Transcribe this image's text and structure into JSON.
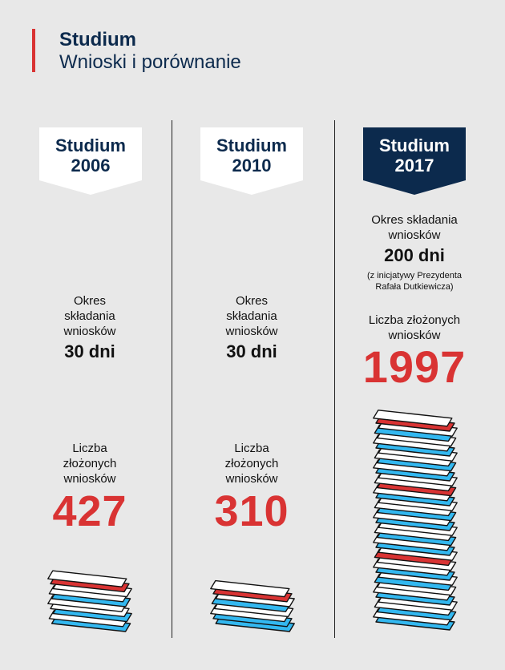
{
  "header": {
    "title": "Studium",
    "subtitle": "Wnioski i porównanie"
  },
  "colors": {
    "navy": "#0c2a4d",
    "red": "#d93333",
    "blue": "#33b8f0",
    "background": "#e8e8e8"
  },
  "columns": [
    {
      "badge_line1": "Studium",
      "badge_line2": "2006",
      "badge_style": "light",
      "period_label": "Okres składania wniosków",
      "period_value": "30 dni",
      "count_label": "Liczba złożonych wniosków",
      "count_value": "427",
      "stack_sheets": [
        "white",
        "red",
        "white",
        "white",
        "blue",
        "white",
        "white",
        "blue",
        "white",
        "blue"
      ]
    },
    {
      "badge_line1": "Studium",
      "badge_line2": "2010",
      "badge_style": "light",
      "period_label": "Okres składania wniosków",
      "period_value": "30 dni",
      "count_label": "Liczba złożonych wniosków",
      "count_value": "310",
      "stack_sheets": [
        "white",
        "red",
        "white",
        "blue",
        "white",
        "white",
        "blue",
        "blue"
      ]
    },
    {
      "badge_line1": "Studium",
      "badge_line2": "2017",
      "badge_style": "dark",
      "period_label": "Okres składania wniosków",
      "period_value": "200 dni",
      "period_note": "(z inicjatywy Prezydenta Rafała Dutkiewicza)",
      "count_label": "Liczba złożonych wniosków",
      "count_value": "1997",
      "stack_sheets": [
        "white",
        "red",
        "white",
        "blue",
        "white",
        "white",
        "blue",
        "white",
        "white",
        "blue",
        "white",
        "blue",
        "white",
        "white",
        "red",
        "white",
        "blue",
        "white",
        "white",
        "blue",
        "white",
        "blue",
        "white",
        "white",
        "blue",
        "white",
        "blue",
        "white",
        "red",
        "white",
        "white",
        "blue",
        "white",
        "blue",
        "white",
        "white",
        "blue",
        "white",
        "white",
        "blue",
        "white",
        "blue"
      ]
    }
  ]
}
